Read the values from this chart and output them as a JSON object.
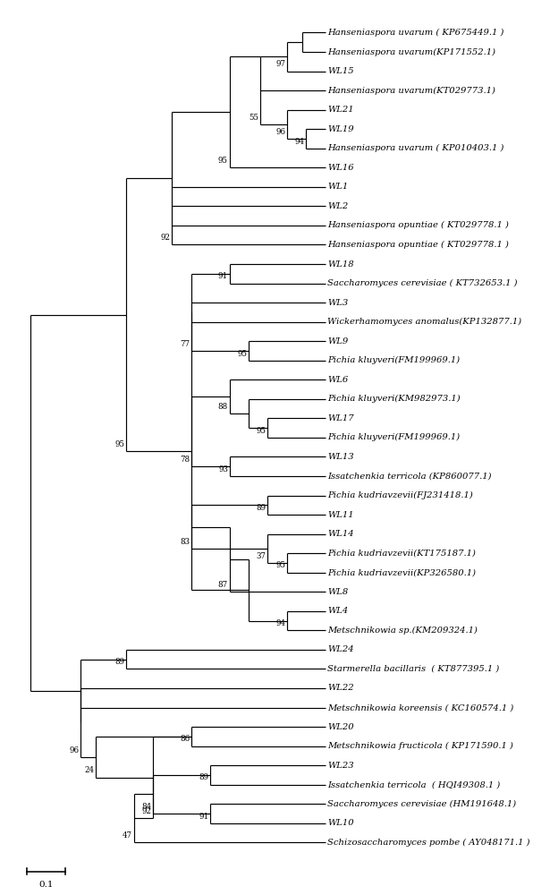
{
  "figsize": [
    5.96,
    10.0
  ],
  "dpi": 100,
  "taxa": [
    "Hanseniaspora uvarum ( KP675449.1 )",
    "Hanseniaspora uvarum(KP171552.1)",
    "WL15",
    "Hanseniaspora uvarum(KT029773.1)",
    "WL21",
    "WL19",
    "Hanseniaspora uvarum ( KP010403.1 )",
    "WL16",
    "WL1",
    "WL2",
    "Hanseniaspora opuntiae ( KT029778.1 )",
    "Hanseniaspora opuntiae ( KT029778.1 )",
    "WL18",
    "Saccharomyces cerevisiae ( KT732653.1 )",
    "WL3",
    "Wickerhamomyces anomalus(KP132877.1)",
    "WL9",
    "Pichia kluyveri(FM199969.1)",
    "WL6",
    "Pichia kluyveri(KM982973.1)",
    "WL17",
    "Pichia kluyveri(FM199969.1)",
    "WL13",
    "Issatchenkia terricola (KP860077.1)",
    "Pichia kudriavzevii(FJ231418.1)",
    "WL11",
    "WL14",
    "Pichia kudriavzevii(KT175187.1)",
    "Pichia kudriavzevii(KP326580.1)",
    "WL8",
    "WL4",
    "Metschnikowia sp.(KM209324.1)",
    "WL24",
    "Starmerella bacillaris  ( KT877395.1 )",
    "WL22",
    "Metschnikowia koreensis ( KC160574.1 )",
    "WL20",
    "Metschnikowia fructicola ( KP171590.1 )",
    "WL23",
    "Issatchenkia terricola  ( HQI49308.1 )",
    "Saccharomyces cerevisiae (HM191648.1)",
    "WL10",
    "Schizosaccharomyces pombe ( AY048171.1 )"
  ],
  "font_size": 7.2,
  "bootstrap_font_size": 6.2,
  "line_width": 0.85
}
